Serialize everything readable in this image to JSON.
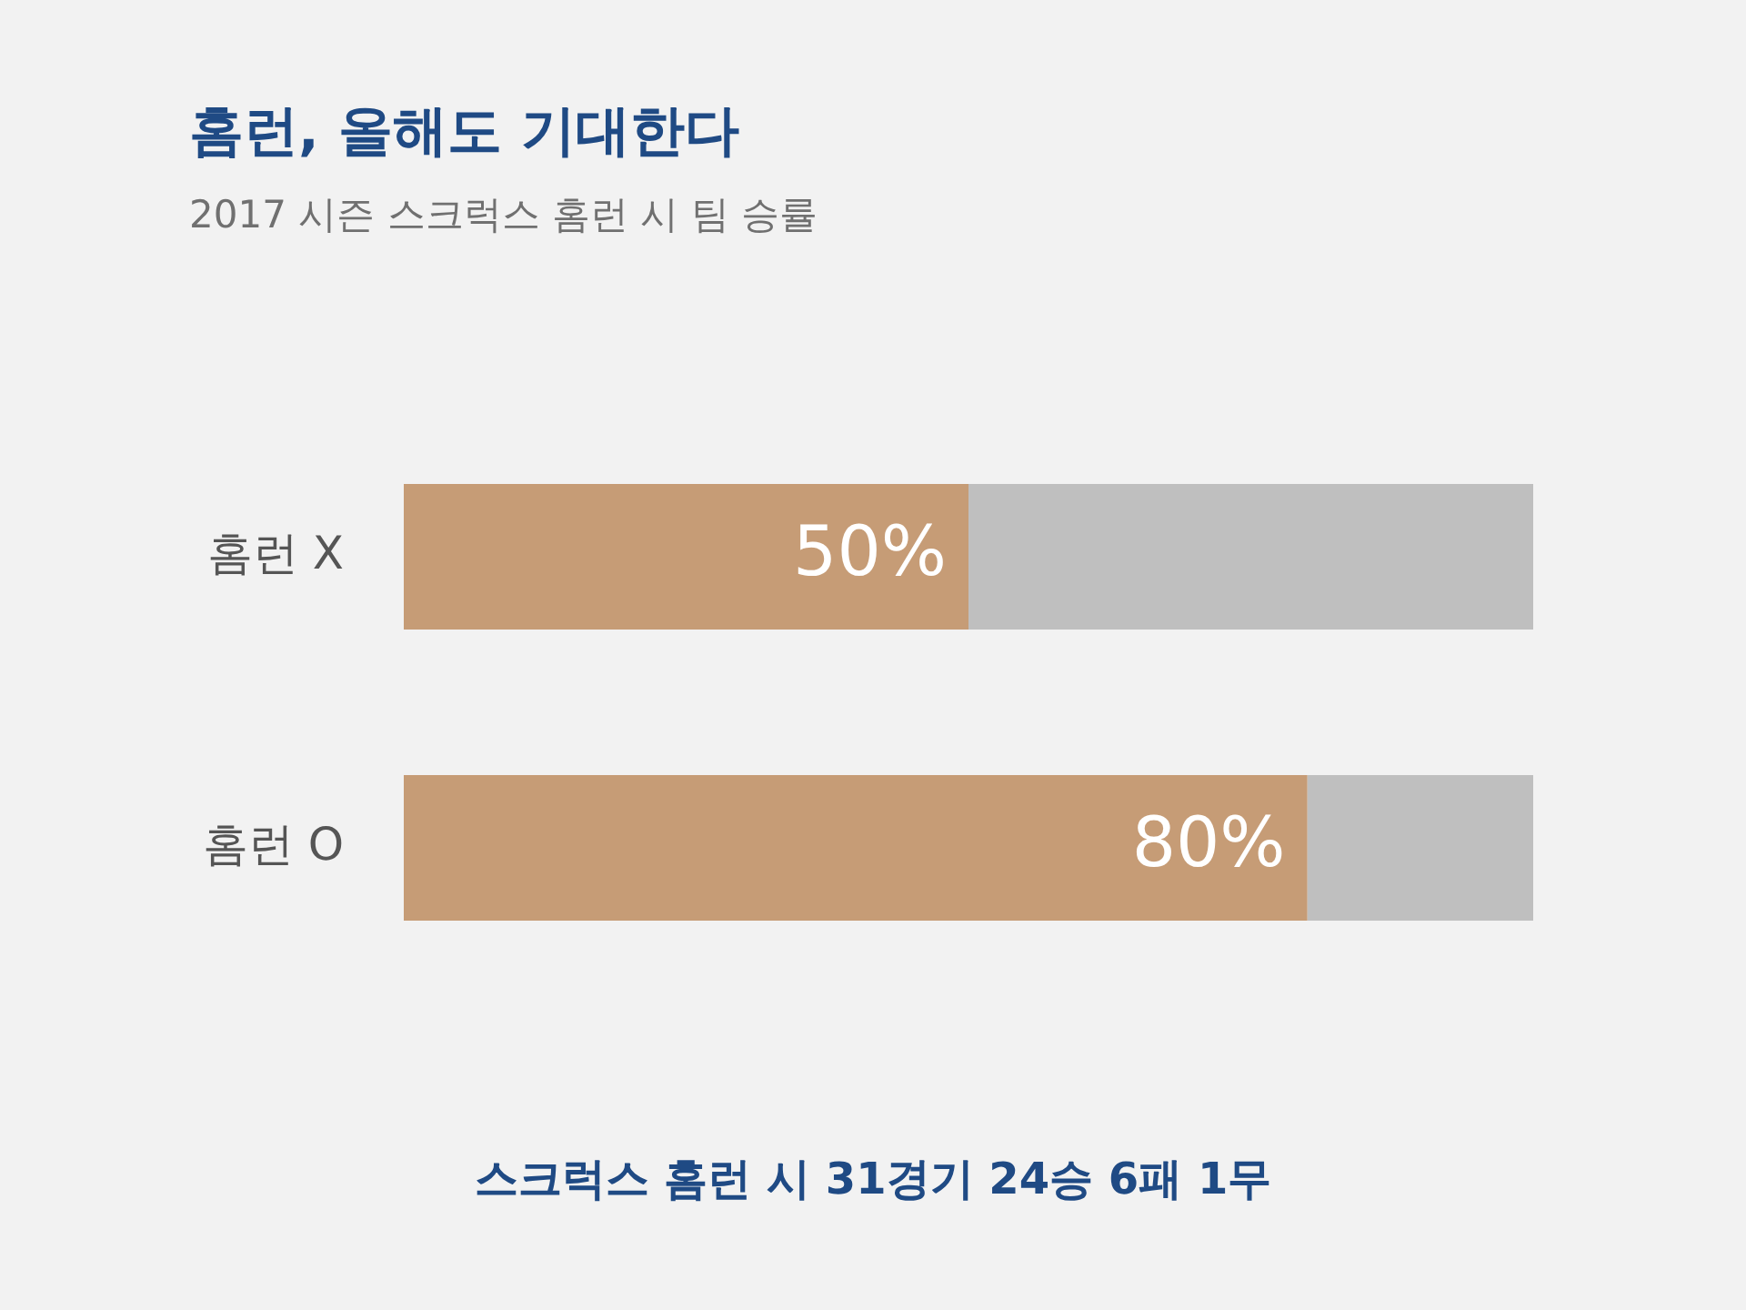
{
  "chart_data": {
    "type": "bar",
    "orientation": "horizontal",
    "stacked": true,
    "title": "홈런, 올해도 기대한다",
    "subtitle": "2017 시즌 스크럭스 홈런 시 팀 승률",
    "categories": [
      "홈런 X",
      "홈런 O"
    ],
    "series": [
      {
        "color": "#c69c76",
        "values": [
          50,
          80
        ],
        "value_labels": [
          "50%",
          "80%"
        ]
      },
      {
        "color": "#bfbfbf",
        "values": [
          50,
          20
        ]
      }
    ],
    "xlim": [
      0,
      100
    ],
    "tick_labels": "y",
    "grid": false,
    "legend": false,
    "annotations": [
      "스크럭스 홈런 시 31경기 24승 6패 1무"
    ]
  }
}
